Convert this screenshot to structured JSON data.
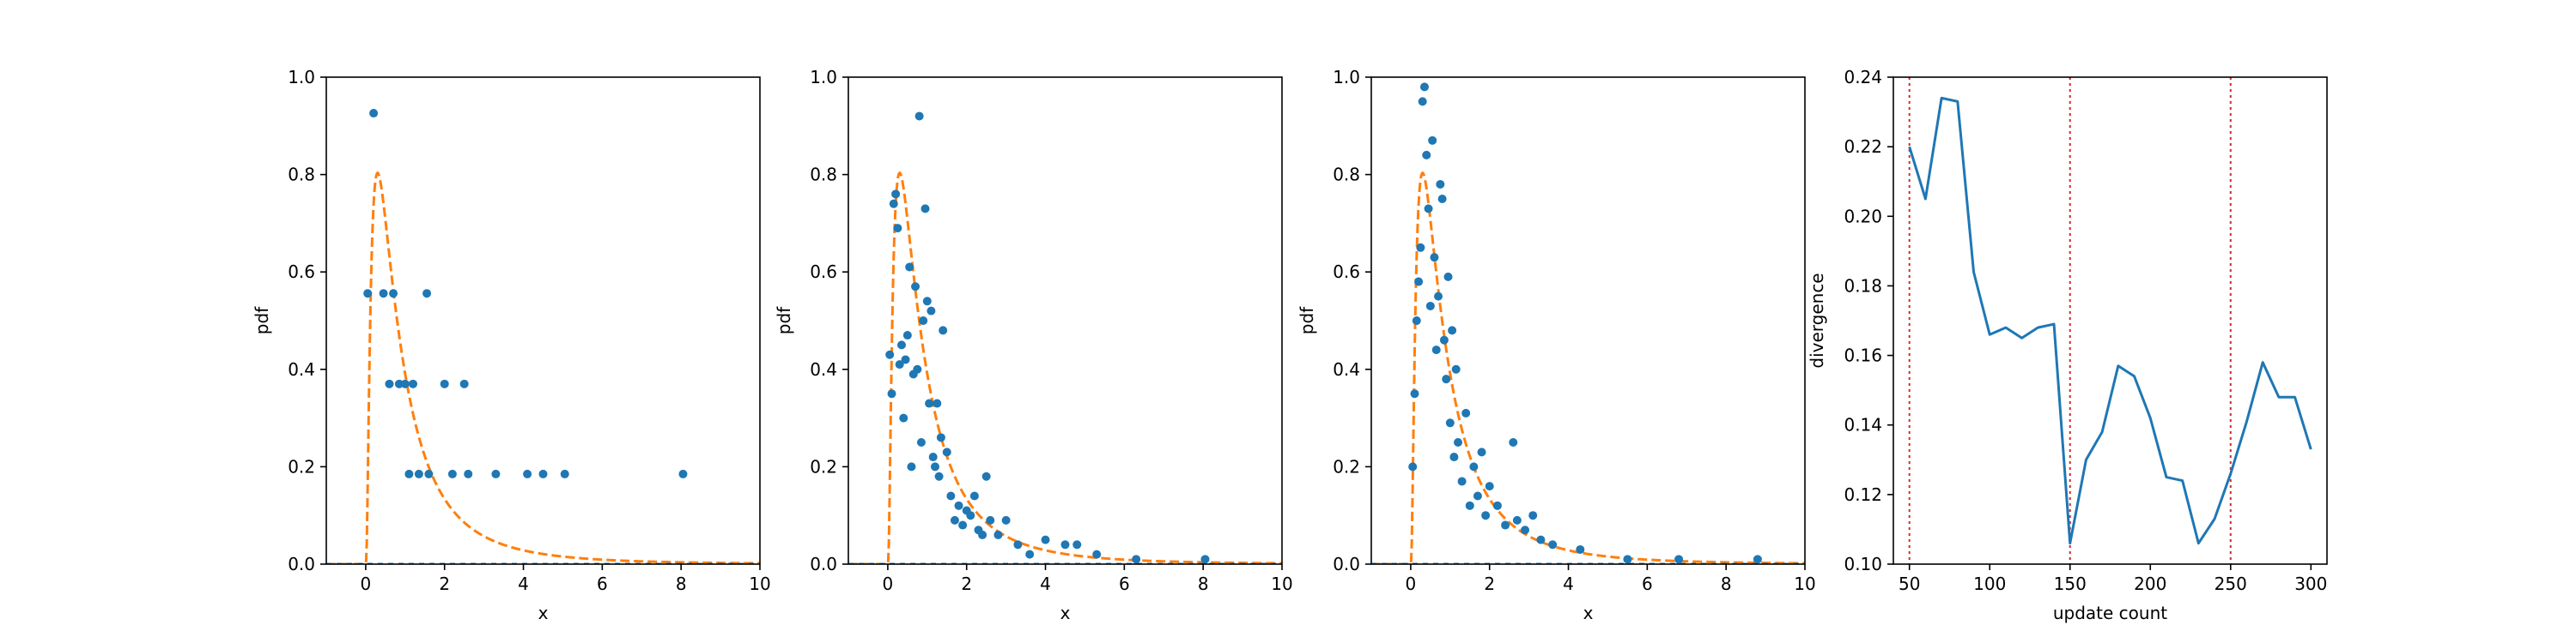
{
  "chart_data": [
    {
      "type": "scatter",
      "xlabel": "x",
      "ylabel": "pdf",
      "xlim": [
        -1,
        10
      ],
      "ylim": [
        0,
        1.0
      ],
      "xticks": [
        "0",
        "2",
        "4",
        "6",
        "8",
        "10"
      ],
      "yticks": [
        "0.0",
        "0.2",
        "0.4",
        "0.6",
        "0.8",
        "1.0"
      ],
      "grid": false,
      "curve_color": "#ff7f0e",
      "point_color": "#1f77b4",
      "points": [
        {
          "x": 0.05,
          "y": 0.556
        },
        {
          "x": 0.2,
          "y": 0.926
        },
        {
          "x": 0.45,
          "y": 0.556
        },
        {
          "x": 0.6,
          "y": 0.37
        },
        {
          "x": 0.7,
          "y": 0.556
        },
        {
          "x": 0.85,
          "y": 0.37
        },
        {
          "x": 1.0,
          "y": 0.37
        },
        {
          "x": 1.1,
          "y": 0.185
        },
        {
          "x": 1.2,
          "y": 0.37
        },
        {
          "x": 1.35,
          "y": 0.185
        },
        {
          "x": 1.55,
          "y": 0.556
        },
        {
          "x": 1.6,
          "y": 0.185
        },
        {
          "x": 2.0,
          "y": 0.37
        },
        {
          "x": 2.2,
          "y": 0.185
        },
        {
          "x": 2.5,
          "y": 0.37
        },
        {
          "x": 2.6,
          "y": 0.185
        },
        {
          "x": 3.3,
          "y": 0.185
        },
        {
          "x": 4.1,
          "y": 0.185
        },
        {
          "x": 4.5,
          "y": 0.185
        },
        {
          "x": 5.05,
          "y": 0.185
        },
        {
          "x": 8.05,
          "y": 0.185
        }
      ]
    },
    {
      "type": "scatter",
      "xlabel": "x",
      "ylabel": "pdf",
      "xlim": [
        -1,
        10
      ],
      "ylim": [
        0,
        1.0
      ],
      "xticks": [
        "0",
        "2",
        "4",
        "6",
        "8",
        "10"
      ],
      "yticks": [
        "0.0",
        "0.2",
        "0.4",
        "0.6",
        "0.8",
        "1.0"
      ],
      "grid": false,
      "curve_color": "#ff7f0e",
      "point_color": "#1f77b4",
      "points": [
        {
          "x": 0.05,
          "y": 0.43
        },
        {
          "x": 0.1,
          "y": 0.35
        },
        {
          "x": 0.15,
          "y": 0.74
        },
        {
          "x": 0.2,
          "y": 0.76
        },
        {
          "x": 0.25,
          "y": 0.69
        },
        {
          "x": 0.3,
          "y": 0.41
        },
        {
          "x": 0.35,
          "y": 0.45
        },
        {
          "x": 0.4,
          "y": 0.3
        },
        {
          "x": 0.45,
          "y": 0.42
        },
        {
          "x": 0.5,
          "y": 0.47
        },
        {
          "x": 0.55,
          "y": 0.61
        },
        {
          "x": 0.6,
          "y": 0.2
        },
        {
          "x": 0.65,
          "y": 0.39
        },
        {
          "x": 0.7,
          "y": 0.57
        },
        {
          "x": 0.75,
          "y": 0.4
        },
        {
          "x": 0.8,
          "y": 0.92
        },
        {
          "x": 0.85,
          "y": 0.25
        },
        {
          "x": 0.9,
          "y": 0.5
        },
        {
          "x": 0.95,
          "y": 0.73
        },
        {
          "x": 1.0,
          "y": 0.54
        },
        {
          "x": 1.05,
          "y": 0.33
        },
        {
          "x": 1.1,
          "y": 0.52
        },
        {
          "x": 1.15,
          "y": 0.22
        },
        {
          "x": 1.2,
          "y": 0.2
        },
        {
          "x": 1.25,
          "y": 0.33
        },
        {
          "x": 1.3,
          "y": 0.18
        },
        {
          "x": 1.35,
          "y": 0.26
        },
        {
          "x": 1.4,
          "y": 0.48
        },
        {
          "x": 1.5,
          "y": 0.23
        },
        {
          "x": 1.6,
          "y": 0.14
        },
        {
          "x": 1.7,
          "y": 0.09
        },
        {
          "x": 1.8,
          "y": 0.12
        },
        {
          "x": 1.9,
          "y": 0.08
        },
        {
          "x": 2.0,
          "y": 0.11
        },
        {
          "x": 2.1,
          "y": 0.1
        },
        {
          "x": 2.2,
          "y": 0.14
        },
        {
          "x": 2.3,
          "y": 0.07
        },
        {
          "x": 2.4,
          "y": 0.06
        },
        {
          "x": 2.5,
          "y": 0.18
        },
        {
          "x": 2.6,
          "y": 0.09
        },
        {
          "x": 2.8,
          "y": 0.06
        },
        {
          "x": 3.0,
          "y": 0.09
        },
        {
          "x": 3.3,
          "y": 0.04
        },
        {
          "x": 3.6,
          "y": 0.02
        },
        {
          "x": 4.0,
          "y": 0.05
        },
        {
          "x": 4.5,
          "y": 0.04
        },
        {
          "x": 4.8,
          "y": 0.04
        },
        {
          "x": 5.3,
          "y": 0.02
        },
        {
          "x": 6.3,
          "y": 0.01
        },
        {
          "x": 8.05,
          "y": 0.01
        }
      ]
    },
    {
      "type": "scatter",
      "xlabel": "x",
      "ylabel": "pdf",
      "xlim": [
        -1,
        10
      ],
      "ylim": [
        0,
        1.0
      ],
      "xticks": [
        "0",
        "2",
        "4",
        "6",
        "8",
        "10"
      ],
      "yticks": [
        "0.0",
        "0.2",
        "0.4",
        "0.6",
        "0.8",
        "1.0"
      ],
      "grid": false,
      "curve_color": "#ff7f0e",
      "point_color": "#1f77b4",
      "points": [
        {
          "x": 0.05,
          "y": 0.2
        },
        {
          "x": 0.1,
          "y": 0.35
        },
        {
          "x": 0.15,
          "y": 0.5
        },
        {
          "x": 0.2,
          "y": 0.58
        },
        {
          "x": 0.25,
          "y": 0.65
        },
        {
          "x": 0.3,
          "y": 0.95
        },
        {
          "x": 0.35,
          "y": 0.98
        },
        {
          "x": 0.4,
          "y": 0.84
        },
        {
          "x": 0.45,
          "y": 0.73
        },
        {
          "x": 0.5,
          "y": 0.53
        },
        {
          "x": 0.55,
          "y": 0.87
        },
        {
          "x": 0.6,
          "y": 0.63
        },
        {
          "x": 0.65,
          "y": 0.44
        },
        {
          "x": 0.7,
          "y": 0.55
        },
        {
          "x": 0.75,
          "y": 0.78
        },
        {
          "x": 0.8,
          "y": 0.75
        },
        {
          "x": 0.85,
          "y": 0.46
        },
        {
          "x": 0.9,
          "y": 0.38
        },
        {
          "x": 0.95,
          "y": 0.59
        },
        {
          "x": 1.0,
          "y": 0.29
        },
        {
          "x": 1.05,
          "y": 0.48
        },
        {
          "x": 1.1,
          "y": 0.22
        },
        {
          "x": 1.15,
          "y": 0.4
        },
        {
          "x": 1.2,
          "y": 0.25
        },
        {
          "x": 1.3,
          "y": 0.17
        },
        {
          "x": 1.4,
          "y": 0.31
        },
        {
          "x": 1.5,
          "y": 0.12
        },
        {
          "x": 1.6,
          "y": 0.2
        },
        {
          "x": 1.7,
          "y": 0.14
        },
        {
          "x": 1.8,
          "y": 0.23
        },
        {
          "x": 1.9,
          "y": 0.1
        },
        {
          "x": 2.0,
          "y": 0.16
        },
        {
          "x": 2.2,
          "y": 0.12
        },
        {
          "x": 2.4,
          "y": 0.08
        },
        {
          "x": 2.6,
          "y": 0.25
        },
        {
          "x": 2.7,
          "y": 0.09
        },
        {
          "x": 2.9,
          "y": 0.07
        },
        {
          "x": 3.1,
          "y": 0.1
        },
        {
          "x": 3.3,
          "y": 0.05
        },
        {
          "x": 3.6,
          "y": 0.04
        },
        {
          "x": 4.3,
          "y": 0.03
        },
        {
          "x": 5.5,
          "y": 0.01
        },
        {
          "x": 6.8,
          "y": 0.01
        },
        {
          "x": 8.8,
          "y": 0.01
        }
      ]
    },
    {
      "type": "line",
      "xlabel": "update count",
      "ylabel": "divergence",
      "xlim": [
        40,
        310
      ],
      "ylim": [
        0.1,
        0.24
      ],
      "xticks": [
        "50",
        "100",
        "150",
        "200",
        "250",
        "300"
      ],
      "yticks": [
        "0.10",
        "0.12",
        "0.14",
        "0.16",
        "0.18",
        "0.20",
        "0.22",
        "0.24"
      ],
      "grid": false,
      "line_color": "#1f77b4",
      "vline_color": "#d62728",
      "vlines": [
        50,
        150,
        250
      ],
      "x": [
        50,
        60,
        70,
        80,
        90,
        100,
        110,
        120,
        130,
        140,
        150,
        160,
        170,
        180,
        190,
        200,
        210,
        220,
        230,
        240,
        250,
        260,
        270,
        280,
        290,
        300
      ],
      "y": [
        0.22,
        0.205,
        0.234,
        0.233,
        0.184,
        0.166,
        0.168,
        0.165,
        0.168,
        0.169,
        0.106,
        0.13,
        0.138,
        0.157,
        0.154,
        0.142,
        0.125,
        0.124,
        0.106,
        0.113,
        0.126,
        0.141,
        0.158,
        0.148,
        0.148,
        0.133
      ]
    }
  ]
}
